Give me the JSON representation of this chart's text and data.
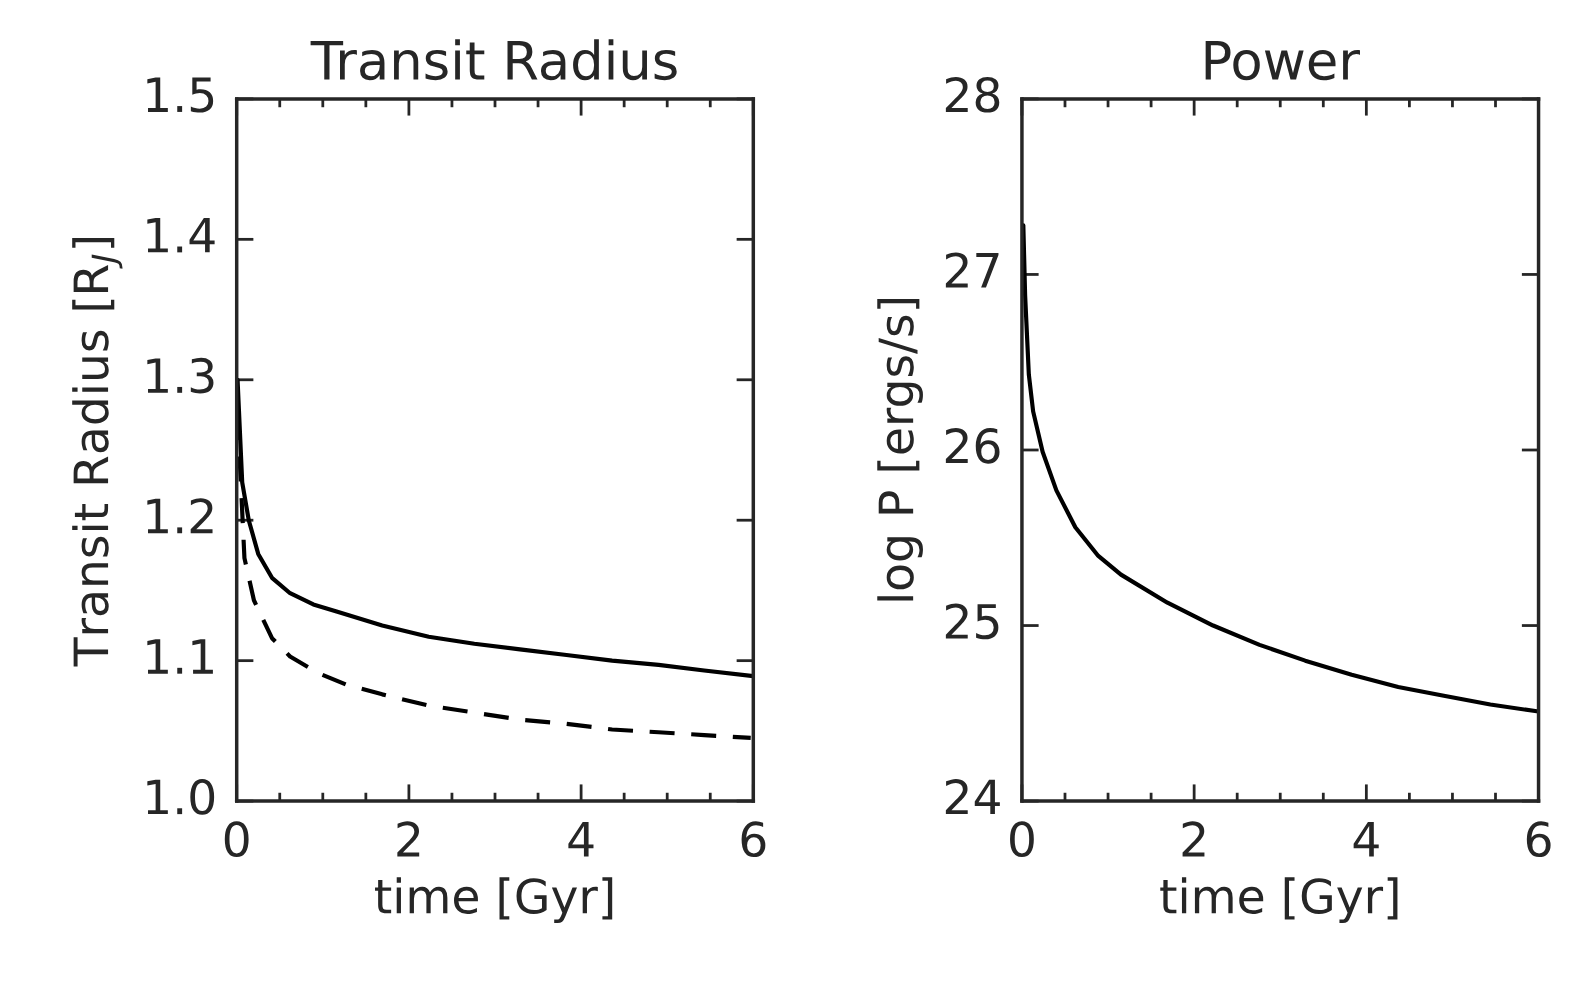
{
  "chart_data": [
    {
      "type": "line",
      "title": "Transit Radius",
      "xlabel": "time [Gyr]",
      "ylabel": "Transit Radius [R$_{J}$]",
      "xlim": [
        0,
        6
      ],
      "xticks": [
        0,
        2,
        4,
        6
      ],
      "ylim": [
        1.0,
        1.5
      ],
      "yticks": [
        {
          "value": 1.0,
          "label": "1.0"
        },
        {
          "value": 1.1,
          "label": "1.1"
        },
        {
          "value": 1.2,
          "label": "1.2"
        },
        {
          "value": 1.3,
          "label": "1.3"
        },
        {
          "value": 1.4,
          "label": "1.4"
        },
        {
          "value": 1.5,
          "label": "1.5"
        }
      ],
      "grid": false,
      "legend": false,
      "series": [
        {
          "color": "#000000",
          "line_style": "solid",
          "x": [
            0.01,
            0.064,
            0.14,
            0.25,
            0.41,
            0.62,
            0.89,
            1.16,
            1.69,
            2.23,
            2.76,
            3.29,
            3.83,
            4.36,
            4.9,
            5.43,
            6.0
          ],
          "values": [
            1.3,
            1.227,
            1.2,
            1.176,
            1.159,
            1.148,
            1.14,
            1.135,
            1.125,
            1.117,
            1.112,
            1.108,
            1.104,
            1.1,
            1.097,
            1.093,
            1.089
          ]
        },
        {
          "color": "#000000",
          "line_style": "dashed",
          "x": [
            0.01,
            0.09,
            0.2,
            0.41,
            0.62,
            0.95,
            1.27,
            1.69,
            2.23,
            2.76,
            3.29,
            3.83,
            4.36,
            4.9,
            5.43,
            5.97
          ],
          "values": [
            1.275,
            1.173,
            1.143,
            1.116,
            1.103,
            1.091,
            1.083,
            1.076,
            1.068,
            1.063,
            1.058,
            1.055,
            1.051,
            1.049,
            1.047,
            1.045
          ]
        }
      ]
    },
    {
      "type": "line",
      "title": "Power",
      "xlabel": "time [Gyr]",
      "ylabel": "log P [ergs/s]",
      "xlim": [
        0,
        6
      ],
      "xticks": [
        0,
        2,
        4,
        6
      ],
      "ylim": [
        24,
        28
      ],
      "yticks": [
        24,
        25,
        26,
        27,
        28
      ],
      "grid": false,
      "legend": false,
      "series": [
        {
          "color": "#000000",
          "line_style": "solid",
          "x": [
            0.016,
            0.037,
            0.08,
            0.13,
            0.24,
            0.4,
            0.62,
            0.88,
            1.15,
            1.69,
            2.22,
            2.76,
            3.29,
            3.83,
            4.37,
            4.9,
            5.44,
            6.0
          ],
          "values": [
            27.28,
            26.88,
            26.43,
            26.22,
            25.99,
            25.77,
            25.56,
            25.4,
            25.29,
            25.13,
            25.0,
            24.89,
            24.8,
            24.72,
            24.65,
            24.6,
            24.55,
            24.51
          ]
        }
      ]
    }
  ]
}
